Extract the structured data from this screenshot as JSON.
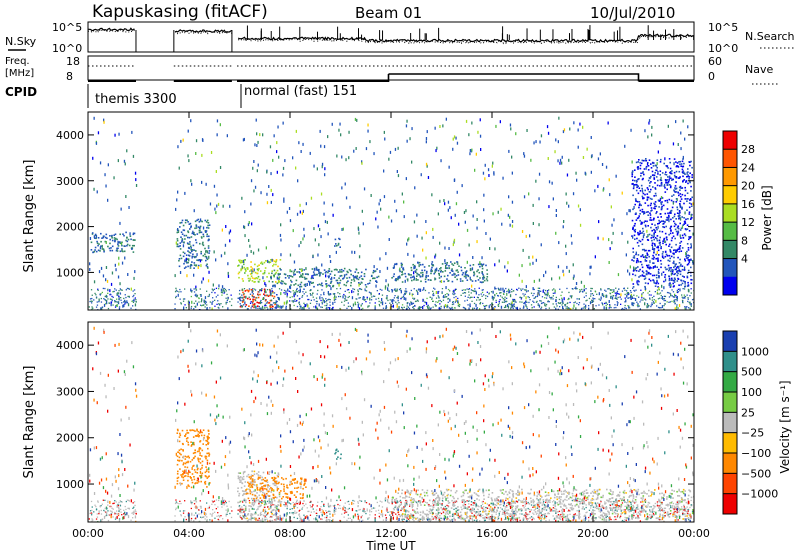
{
  "header": {
    "station": "Kapuskasing (fitACF)",
    "beam": "Beam 01",
    "date": "10/Jul/2010"
  },
  "noise_panel": {
    "left_label": "N.Sky",
    "right_label": "N.Search",
    "left_ticks": [
      "10^5",
      "10^0"
    ],
    "right_ticks": [
      "10^5",
      "10^0"
    ]
  },
  "freq_panel": {
    "left_label_line1": "Freq.",
    "left_label_line2": "[MHz]",
    "right_label": "Nave",
    "left_ticks": [
      "18",
      "8"
    ],
    "right_ticks": [
      "60",
      "0"
    ]
  },
  "cpid_panel": {
    "label": "CPID",
    "mode1": "themis 3300",
    "mode2": "normal (fast) 151"
  },
  "power_scale": {
    "title": "Power [dB]",
    "ticks": [
      "28",
      "24",
      "20",
      "16",
      "12",
      "8",
      "4"
    ],
    "colors": [
      "#ee0000",
      "#ff5500",
      "#ff9900",
      "#ffcc00",
      "#aadd22",
      "#55bb44",
      "#338866",
      "#2255bb",
      "#0000ee"
    ]
  },
  "velocity_scale": {
    "title": "Velocity [m s⁻¹]",
    "ticks": [
      "1000",
      "500",
      "100",
      "25",
      "−25",
      "−100",
      "−500",
      "−1000"
    ],
    "colors": [
      "#1a3fb0",
      "#2f8f8a",
      "#33aa44",
      "#77cc44",
      "#bbbbbb",
      "#ffbb00",
      "#ff8800",
      "#ff4400",
      "#ee0000"
    ]
  },
  "range_axis": {
    "label": "Slant Range [km]",
    "ticks": [
      "1000",
      "2000",
      "3000",
      "4000"
    ]
  },
  "time_axis": {
    "label": "Time UT",
    "ticks": [
      "00:00",
      "04:00",
      "08:00",
      "12:00",
      "16:00",
      "20:00",
      "00:00"
    ]
  },
  "chart_data": {
    "type": "heatmap",
    "title": "Kapuskasing (fitACF) Beam 01 10/Jul/2010",
    "xlabel": "Time UT",
    "ylabel": "Slant Range [km]",
    "xlim": [
      0,
      24
    ],
    "ylim": [
      180,
      4500
    ],
    "frequency_mhz": [
      {
        "t0": 0.0,
        "t1": 1.9,
        "value": 10
      },
      {
        "t0": 3.4,
        "t1": 5.7,
        "value": 10
      },
      {
        "t0": 5.9,
        "t1": 11.9,
        "value": 10
      },
      {
        "t0": 11.9,
        "t1": 21.8,
        "value": 13
      },
      {
        "t0": 21.8,
        "t1": 24.0,
        "value": 10
      }
    ],
    "no_data_gaps_ut": [
      [
        1.9,
        3.4
      ],
      [
        5.7,
        5.9
      ]
    ],
    "cpid_modes": [
      {
        "t0": 0.0,
        "t1": 5.9,
        "name": "themis 3300"
      },
      {
        "t0": 5.9,
        "t1": 24.0,
        "name": "normal (fast) 151"
      }
    ],
    "power_regions": [
      {
        "t0": 0.1,
        "t1": 1.9,
        "r0": 1450,
        "r1": 1900,
        "power_db": 8
      },
      {
        "t0": 3.5,
        "t1": 4.8,
        "r0": 1100,
        "r1": 2200,
        "power_db": 8
      },
      {
        "t0": 5.9,
        "t1": 7.6,
        "r0": 800,
        "r1": 1300,
        "power_db": 16
      },
      {
        "t0": 6.0,
        "t1": 7.4,
        "r0": 250,
        "r1": 650,
        "power_db": 28
      },
      {
        "t0": 7.2,
        "t1": 11.5,
        "r0": 700,
        "r1": 1100,
        "power_db": 8
      },
      {
        "t0": 9.7,
        "t1": 10.0,
        "r0": 1550,
        "r1": 1800,
        "power_db": 8
      },
      {
        "t0": 12.0,
        "t1": 15.8,
        "r0": 800,
        "r1": 1250,
        "power_db": 8
      },
      {
        "t0": 21.5,
        "t1": 23.9,
        "r0": 700,
        "r1": 3500,
        "power_db": 4
      }
    ],
    "velocity_regions": [
      {
        "t0": 3.5,
        "t1": 4.8,
        "r0": 900,
        "r1": 2200,
        "velocity_ms": -100
      },
      {
        "t0": 5.9,
        "t1": 7.6,
        "r0": 250,
        "r1": 1300,
        "velocity_ms": 0
      },
      {
        "t0": 6.2,
        "t1": 8.6,
        "r0": 700,
        "r1": 1200,
        "velocity_ms": -100
      },
      {
        "t0": 9.7,
        "t1": 10.0,
        "r0": 1550,
        "r1": 1800,
        "velocity_ms": 500
      },
      {
        "t0": 12.0,
        "t1": 24.0,
        "r0": 250,
        "r1": 900,
        "velocity_ms": 0
      }
    ]
  }
}
